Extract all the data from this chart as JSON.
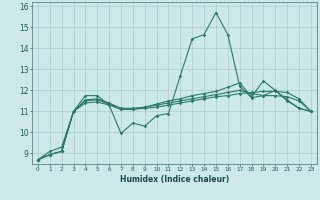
{
  "xlabel": "Humidex (Indice chaleur)",
  "x": [
    0,
    1,
    2,
    3,
    4,
    5,
    6,
    7,
    8,
    9,
    10,
    11,
    12,
    13,
    14,
    15,
    16,
    17,
    18,
    19,
    20,
    21,
    22,
    23
  ],
  "line1": [
    8.7,
    9.1,
    9.3,
    11.0,
    11.75,
    11.75,
    11.3,
    9.95,
    10.45,
    10.3,
    10.8,
    10.9,
    12.7,
    14.45,
    14.65,
    15.7,
    14.65,
    12.2,
    11.65,
    11.75,
    12.0,
    11.5,
    11.15,
    11.0
  ],
  "line2": [
    8.7,
    8.95,
    9.1,
    11.0,
    11.5,
    11.55,
    11.35,
    11.1,
    11.1,
    11.15,
    11.2,
    11.3,
    11.4,
    11.5,
    11.6,
    11.7,
    11.75,
    11.85,
    11.9,
    11.95,
    11.95,
    11.9,
    11.6,
    11.0
  ],
  "line3": [
    8.7,
    8.95,
    9.1,
    11.0,
    11.4,
    11.45,
    11.3,
    11.1,
    11.1,
    11.2,
    11.3,
    11.4,
    11.5,
    11.6,
    11.7,
    11.8,
    11.9,
    12.0,
    11.85,
    11.75,
    11.75,
    11.7,
    11.5,
    11.0
  ],
  "line4": [
    8.7,
    8.95,
    9.1,
    11.0,
    11.55,
    11.6,
    11.4,
    11.15,
    11.15,
    11.2,
    11.35,
    11.5,
    11.6,
    11.75,
    11.85,
    11.95,
    12.15,
    12.35,
    11.7,
    12.45,
    12.0,
    11.55,
    11.15,
    11.0
  ],
  "line_color": "#2a7a6a",
  "bg_color": "#cce8e8",
  "grid_color": "#aacece",
  "ylim": [
    8.5,
    16.2
  ],
  "xlim": [
    -0.5,
    23.5
  ],
  "yticks": [
    9,
    10,
    11,
    12,
    13,
    14,
    15,
    16
  ],
  "xticks": [
    0,
    1,
    2,
    3,
    4,
    5,
    6,
    7,
    8,
    9,
    10,
    11,
    12,
    13,
    14,
    15,
    16,
    17,
    18,
    19,
    20,
    21,
    22,
    23
  ]
}
